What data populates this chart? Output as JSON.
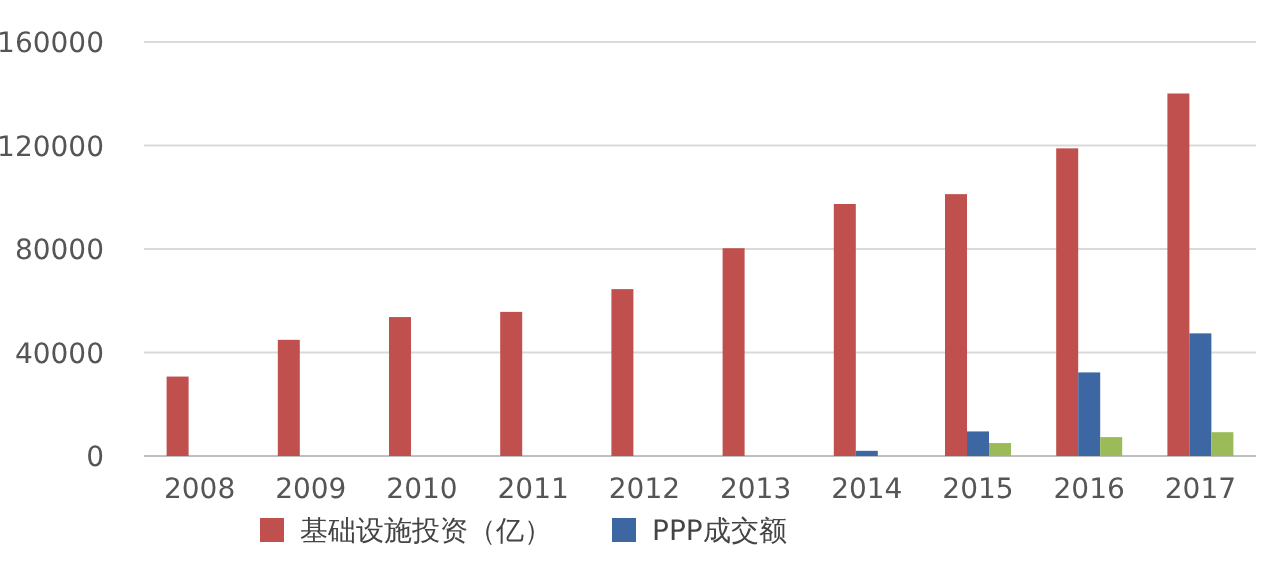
{
  "chart_data": {
    "type": "bar",
    "categories": [
      "2008",
      "2009",
      "2010",
      "2011",
      "2012",
      "2013",
      "2014",
      "2015",
      "2016",
      "2017"
    ],
    "series": [
      {
        "name": "基础设施投资（亿）",
        "color": "#c0504d",
        "values": [
          30700,
          44900,
          53700,
          55700,
          64500,
          80300,
          97400,
          101200,
          118900,
          140100
        ]
      },
      {
        "name": "PPP成交额",
        "color": "#3d67a3",
        "values": [
          null,
          null,
          null,
          null,
          null,
          null,
          2000,
          9500,
          32300,
          47400
        ]
      },
      {
        "color": "#9bbb59",
        "values": [
          null,
          null,
          null,
          null,
          null,
          null,
          null,
          5000,
          7300,
          9200
        ]
      }
    ],
    "ylim": [
      0,
      160000
    ],
    "yticks": [
      0,
      40000,
      80000,
      120000,
      160000
    ],
    "grid": "y",
    "legend": "bottom"
  }
}
